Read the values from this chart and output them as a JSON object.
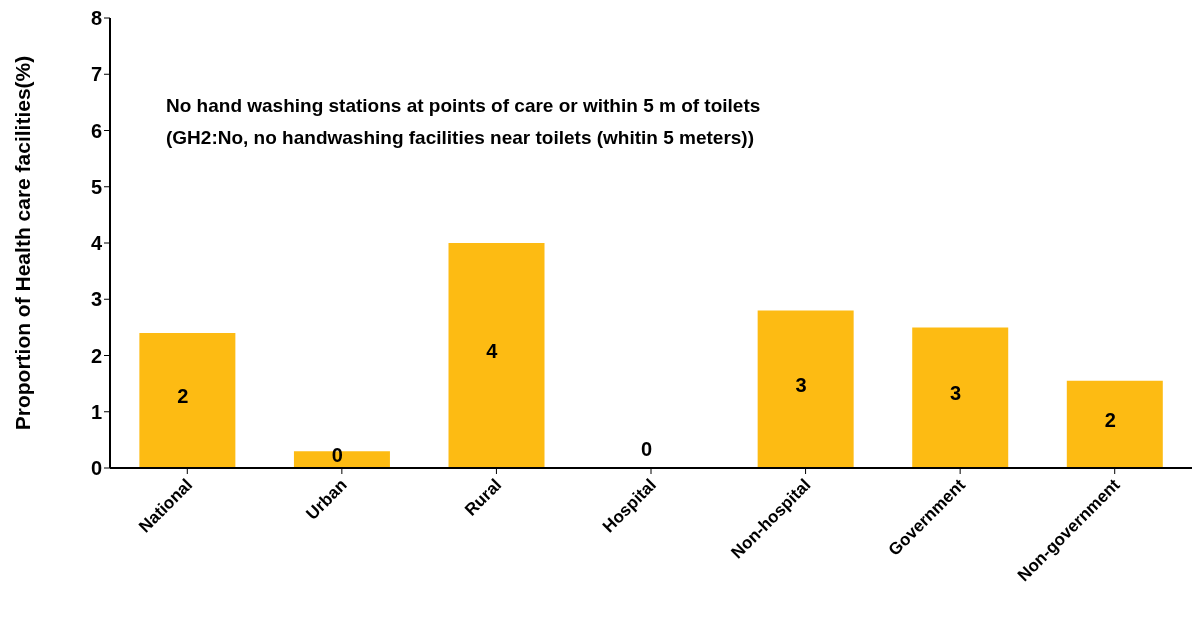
{
  "chart_data": {
    "type": "bar",
    "title": "No hand washing stations at points of care or within 5 m of toilets",
    "subtitle": "(GH2:No, no handwashing facilities near toilets (whitin 5 meters))",
    "ylabel": "Proportion of Health care facilities(%)",
    "categories": [
      "National",
      "Urban",
      "Rural",
      "Hospital",
      "Non-hospital",
      "Government",
      "Non-government"
    ],
    "values": [
      2.4,
      0.3,
      4.0,
      0,
      2.8,
      2.5,
      1.55
    ],
    "value_labels": [
      "2",
      "0",
      "4",
      "0",
      "3",
      "3",
      "2"
    ],
    "color": "#fdbb13",
    "ylim": [
      0,
      8
    ],
    "yticks": [
      0,
      1,
      2,
      3,
      4,
      5,
      6,
      7,
      8
    ],
    "grid": false,
    "legend": false
  }
}
